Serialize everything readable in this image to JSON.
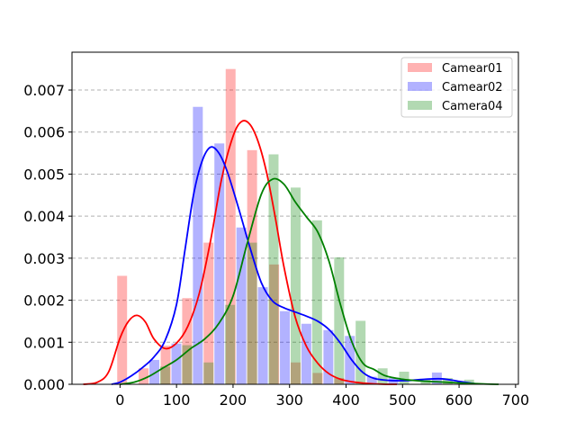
{
  "chart_data": {
    "type": "bar",
    "title": "",
    "xlabel": "",
    "ylabel": "",
    "xlim": [
      -85,
      705
    ],
    "ylim": [
      0,
      0.0079
    ],
    "xticks": [
      0,
      100,
      200,
      300,
      400,
      500,
      600,
      700
    ],
    "yticks": [
      0.0,
      0.001,
      0.002,
      0.003,
      0.004,
      0.005,
      0.006,
      0.007
    ],
    "ytick_labels": [
      "0.000",
      "0.001",
      "0.002",
      "0.003",
      "0.004",
      "0.005",
      "0.006",
      "0.007"
    ],
    "grid": "horizontal-dashed",
    "legend_position": "top-right",
    "bin_width": 57,
    "bins": [
      -5,
      33,
      72,
      110,
      148,
      187,
      225,
      264,
      302,
      341,
      379,
      418,
      456,
      494,
      533,
      571
    ],
    "series": [
      {
        "name": "Camear01",
        "color": "#ff0000",
        "bar_alpha": 0.3,
        "values": [
          0.00258,
          0.00038,
          0.00092,
          0.00205,
          0.00337,
          0.0075,
          0.00557,
          0.00285,
          0.00052,
          0.00027,
          0.00015,
          0.0,
          0.0,
          0.0,
          0.0,
          0.0
        ],
        "kde_x": [
          -65,
          -40,
          -20,
          0,
          15,
          30,
          45,
          60,
          80,
          100,
          120,
          140,
          160,
          180,
          200,
          215,
          230,
          245,
          260,
          275,
          290,
          310,
          330,
          350,
          370,
          390,
          410,
          430,
          450,
          470,
          490
        ],
        "kde_y": [
          0.0,
          5e-05,
          0.0003,
          0.0011,
          0.0015,
          0.00164,
          0.00148,
          0.00108,
          0.00085,
          0.00098,
          0.00138,
          0.00215,
          0.0034,
          0.0049,
          0.0059,
          0.00625,
          0.00618,
          0.00575,
          0.005,
          0.00395,
          0.0028,
          0.0016,
          0.0009,
          0.0005,
          0.00025,
          0.00012,
          6e-05,
          3e-05,
          1e-05,
          0.0,
          0.0
        ]
      },
      {
        "name": "Camear02",
        "color": "#0000ff",
        "bar_alpha": 0.3,
        "values": [
          0.0,
          0.00058,
          0.00097,
          0.0066,
          0.00573,
          0.00373,
          0.00231,
          0.00174,
          0.00144,
          0.00129,
          0.00115,
          0.00018,
          0.00015,
          0.0,
          0.00028,
          0.0
        ],
        "kde_x": [
          -15,
          0,
          20,
          40,
          60,
          80,
          100,
          115,
          130,
          145,
          160,
          175,
          190,
          210,
          230,
          250,
          270,
          290,
          310,
          330,
          350,
          370,
          390,
          410,
          430,
          450,
          480,
          510,
          540,
          570,
          600,
          630
        ],
        "kde_y": [
          0.0,
          5e-05,
          0.0002,
          0.0004,
          0.00065,
          0.00105,
          0.0019,
          0.0032,
          0.0045,
          0.0053,
          0.00564,
          0.0055,
          0.00505,
          0.00418,
          0.00325,
          0.00242,
          0.00198,
          0.00182,
          0.00172,
          0.00162,
          0.0015,
          0.0013,
          0.00098,
          0.00058,
          0.00028,
          0.00014,
          9e-05,
          9e-05,
          0.00012,
          0.00013,
          7e-05,
          1e-05
        ]
      },
      {
        "name": "Camera04",
        "color": "#008000",
        "bar_alpha": 0.3,
        "values": [
          0.0,
          0.00042,
          0.00093,
          0.00052,
          0.00189,
          0.00337,
          0.00547,
          0.00468,
          0.0039,
          0.00302,
          0.00151,
          0.00038,
          0.0003,
          0.00013,
          0.00015,
          0.00011
        ],
        "kde_x": [
          0,
          25,
          50,
          75,
          100,
          125,
          150,
          175,
          200,
          225,
          250,
          270,
          290,
          310,
          330,
          350,
          370,
          390,
          410,
          430,
          450,
          470,
          500,
          530,
          560,
          590,
          620,
          650,
          670
        ],
        "kde_y": [
          0.0,
          5e-05,
          0.00018,
          0.00038,
          0.00058,
          0.00085,
          0.00108,
          0.00145,
          0.0021,
          0.00335,
          0.00452,
          0.00488,
          0.00476,
          0.00434,
          0.00398,
          0.00362,
          0.00292,
          0.0019,
          0.00102,
          0.0005,
          0.00035,
          0.0002,
          0.00012,
          8e-05,
          6e-05,
          4e-05,
          2e-05,
          5e-06,
          0.0
        ]
      }
    ]
  }
}
